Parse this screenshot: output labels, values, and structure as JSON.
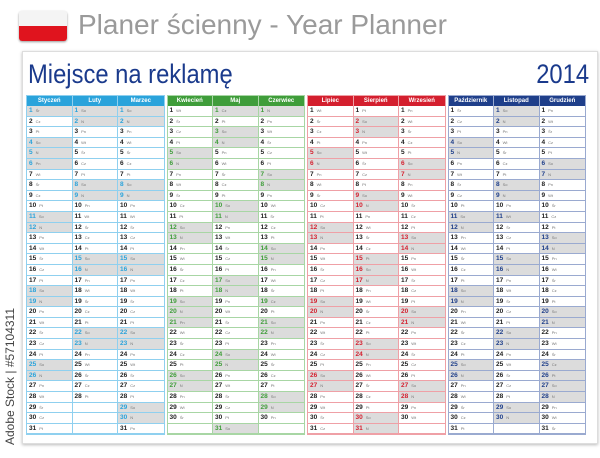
{
  "header": {
    "title": "Planer ścienny - Year Planner",
    "flag_colors": [
      "#f4f4f4",
      "#e0141e"
    ]
  },
  "planner": {
    "ad_text": "Miejsce na reklamę",
    "year": "2014",
    "weekdays": [
      "Pn",
      "Wt",
      "Śr",
      "Cz",
      "Pt",
      "So",
      "N"
    ],
    "quarters": [
      {
        "color": "#2aa3db",
        "border": "#8fd0ef",
        "months": [
          {
            "name": "Styczeń",
            "days": 31,
            "first_weekday": 2,
            "holidays": [
              1,
              6
            ]
          },
          {
            "name": "Luty",
            "days": 28,
            "first_weekday": 5,
            "holidays": []
          },
          {
            "name": "Marzec",
            "days": 31,
            "first_weekday": 5,
            "holidays": []
          }
        ]
      },
      {
        "color": "#3f9d3a",
        "border": "#a8d6a4",
        "months": [
          {
            "name": "Kwiecień",
            "days": 30,
            "first_weekday": 1,
            "holidays": [
              20,
              21
            ]
          },
          {
            "name": "Maj",
            "days": 31,
            "first_weekday": 3,
            "holidays": [
              1,
              3
            ]
          },
          {
            "name": "Czerwiec",
            "days": 30,
            "first_weekday": 6,
            "holidays": [
              8,
              19
            ]
          }
        ]
      },
      {
        "color": "#d41f2e",
        "border": "#efa0a6",
        "months": [
          {
            "name": "Lipiec",
            "days": 31,
            "first_weekday": 1,
            "holidays": []
          },
          {
            "name": "Sierpień",
            "days": 31,
            "first_weekday": 4,
            "holidays": [
              15
            ]
          },
          {
            "name": "Wrzesień",
            "days": 30,
            "first_weekday": 0,
            "holidays": []
          }
        ]
      },
      {
        "color": "#1f3f8a",
        "border": "#9aaad0",
        "months": [
          {
            "name": "Październik",
            "days": 31,
            "first_weekday": 2,
            "holidays": []
          },
          {
            "name": "Listopad",
            "days": 30,
            "first_weekday": 5,
            "holidays": [
              1,
              11
            ]
          },
          {
            "name": "Grudzień",
            "days": 31,
            "first_weekday": 0,
            "holidays": [
              25,
              26
            ]
          }
        ]
      }
    ]
  },
  "watermark": "Adobe Stock | #57104311"
}
